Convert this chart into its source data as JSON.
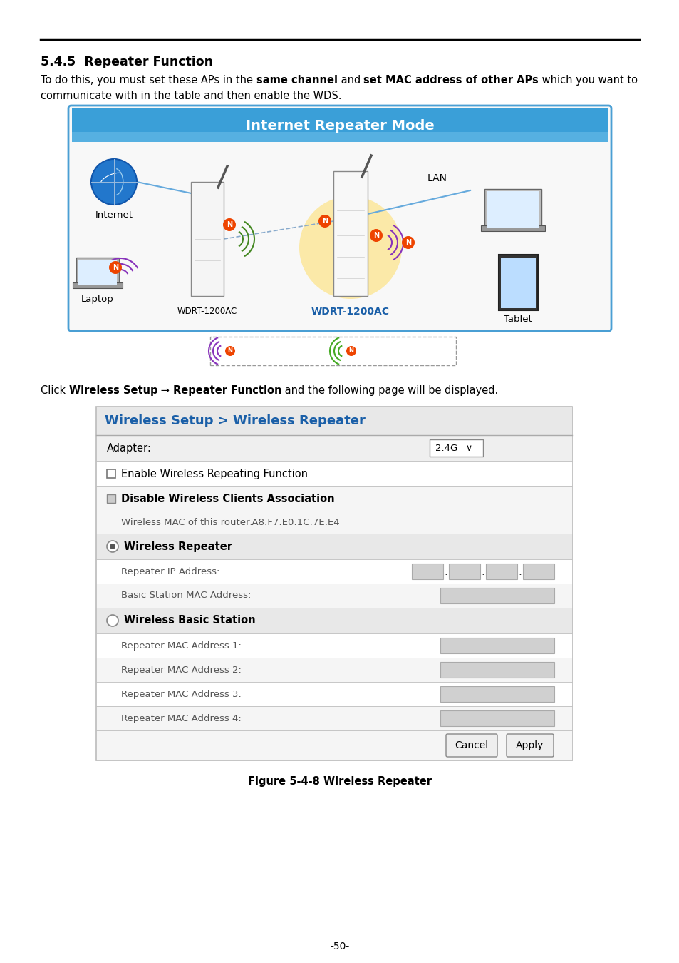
{
  "title_section": "5.4.5  Repeater Function",
  "body_text_line1_plain": "To do this, you must set these APs in the ",
  "body_bold1": "same channel",
  "body_text_mid": " and ",
  "body_bold2": "set MAC address of other APs",
  "body_text_end": " which you want to",
  "body_text_line2": "communicate with in the table and then enable the WDS.",
  "internet_repeater_title": "Internet Repeater Mode",
  "click_parts": [
    [
      "Click ",
      false
    ],
    [
      "Wireless Setup",
      true
    ],
    [
      " → ",
      false
    ],
    [
      "Repeater Function",
      true
    ],
    [
      " and the following page will be displayed.",
      false
    ]
  ],
  "form_title": "Wireless Setup > Wireless Repeater",
  "form_title_color": "#1a5fa8",
  "adapter_label": "Adapter:",
  "adapter_value": "2.4G ✓",
  "check1_label": "Enable Wireless Repeating Function",
  "check2_label": "Disable Wireless Clients Association",
  "mac_label": "Wireless MAC of this router:",
  "mac_value": "  A8:F7:E0:1C:7E:E4",
  "radio1_label": "Wireless Repeater",
  "ip_label": "Repeater IP Address:",
  "mac_addr_label": "Basic Station MAC Address:",
  "radio2_label": "Wireless Basic Station",
  "rep_mac1": "Repeater MAC Address 1:",
  "rep_mac2": "Repeater MAC Address 2:",
  "rep_mac3": "Repeater MAC Address 3:",
  "rep_mac4": "Repeater MAC Address 4:",
  "btn_cancel": "Cancel",
  "btn_apply": "Apply",
  "figure_caption": "Figure 5-4-8 Wireless Repeater",
  "page_number": "-50-",
  "header_bg": "#4fa3d8",
  "form_border_color": "#bbbbbb",
  "row_white": "#ffffff",
  "row_light": "#f2f2f2",
  "row_section": "#e8e8e8",
  "input_bg": "#d0d0d0",
  "diagram_border": "#4a9fd4"
}
